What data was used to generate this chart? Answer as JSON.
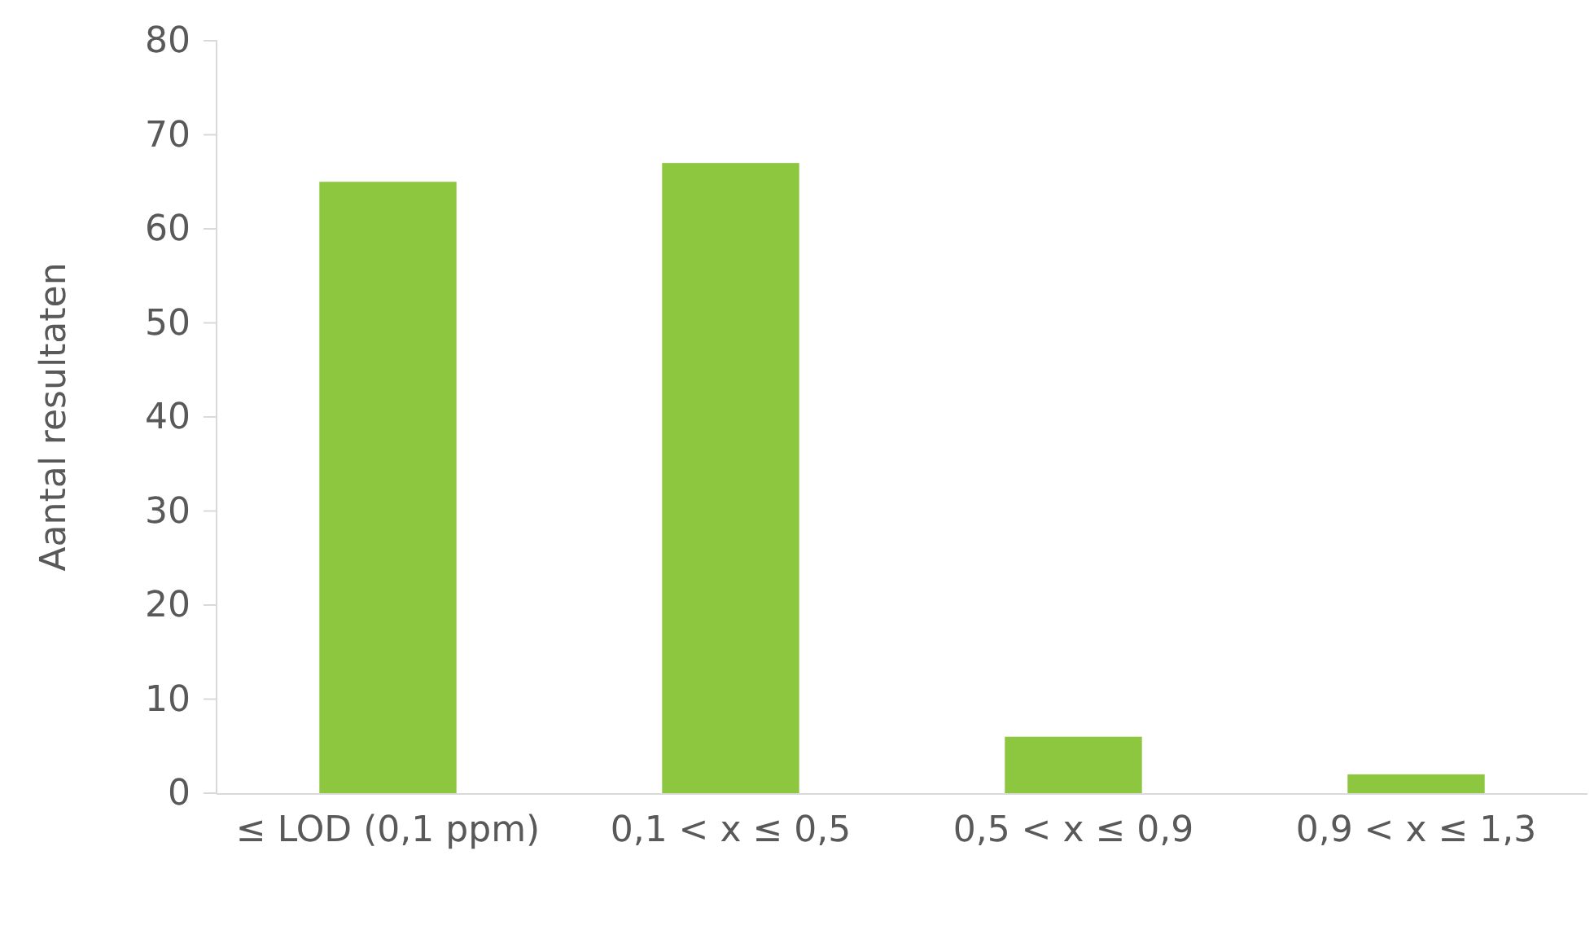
{
  "chart_data": {
    "type": "bar",
    "ylabel": "Aantal resultaten",
    "categories": [
      "≤ LOD (0,1 ppm)",
      "0,1 < x ≤ 0,5",
      "0,5 < x ≤ 0,9",
      "0,9 < x ≤ 1,3"
    ],
    "values": [
      65,
      67,
      6,
      2
    ],
    "color": "#8dc63f",
    "ylim": [
      0,
      80
    ],
    "yticks": [
      0,
      10,
      20,
      30,
      40,
      50,
      60,
      70,
      80
    ],
    "grid": false
  }
}
